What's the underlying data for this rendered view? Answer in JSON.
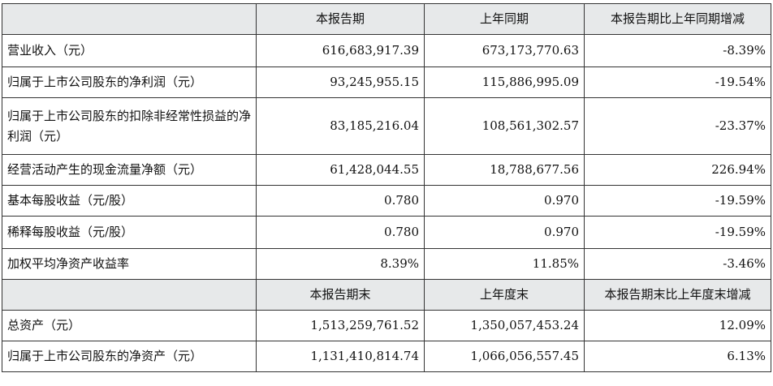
{
  "header1": {
    "col1": "本报告期",
    "col2": "上年同期",
    "col3": "本报告期比上年同期增减"
  },
  "rows1": [
    {
      "label": "营业收入（元）",
      "current": "616,683,917.39",
      "previous": "673,173,770.63",
      "change": "-8.39%"
    },
    {
      "label": "归属于上市公司股东的净利润（元）",
      "current": "93,245,955.15",
      "previous": "115,886,995.09",
      "change": "-19.54%"
    },
    {
      "label": "归属于上市公司股东的扣除非经常性损益的净利润（元）",
      "current": "83,185,216.04",
      "previous": "108,561,302.57",
      "change": "-23.37%"
    },
    {
      "label": "经营活动产生的现金流量净额（元）",
      "current": "61,428,044.55",
      "previous": "18,788,677.56",
      "change": "226.94%"
    },
    {
      "label": "基本每股收益（元/股）",
      "current": "0.780",
      "previous": "0.970",
      "change": "-19.59%"
    },
    {
      "label": "稀释每股收益（元/股）",
      "current": "0.780",
      "previous": "0.970",
      "change": "-19.59%"
    },
    {
      "label": "加权平均净资产收益率",
      "current": "8.39%",
      "previous": "11.85%",
      "change": "-3.46%"
    }
  ],
  "header2": {
    "col1": "本报告期末",
    "col2": "上年度末",
    "col3": "本报告期末比上年度末增减"
  },
  "rows2": [
    {
      "label": "总资产（元）",
      "current": "1,513,259,761.52",
      "previous": "1,350,057,453.24",
      "change": "12.09%"
    },
    {
      "label": "归属于上市公司股东的净资产（元）",
      "current": "1,131,410,814.74",
      "previous": "1,066,056,557.45",
      "change": "6.13%"
    }
  ]
}
